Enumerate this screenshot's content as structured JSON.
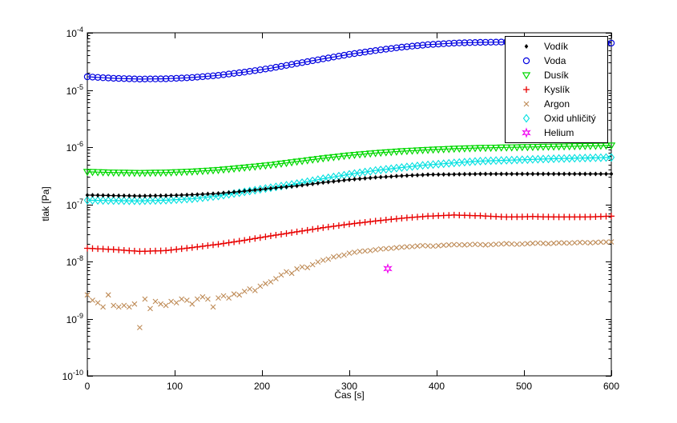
{
  "figure": {
    "background": "#ffffff"
  },
  "chart_data": {
    "type": "line",
    "title": "",
    "xlabel": "Čas [s]",
    "ylabel": "tlak [Pa]",
    "x_unit": "s",
    "y_unit": "Pa",
    "xlim": [
      0,
      600
    ],
    "x_ticks": [
      0,
      100,
      200,
      300,
      400,
      500,
      600
    ],
    "y_scale": "log",
    "ylim": [
      1e-10,
      0.0001
    ],
    "y_tick_exponents": [
      -4,
      -5,
      -6,
      -7,
      -8,
      -9,
      -10
    ],
    "grid": false,
    "legend": {
      "position": "top-right",
      "border_color": "#000000",
      "background": "#ffffff"
    },
    "marker_interval_s": 6,
    "series": [
      {
        "name": "Vodík",
        "color": "#000000",
        "marker": "diamond-filled",
        "line": true,
        "points": [
          [
            0,
            1.45e-07
          ],
          [
            30,
            1.42e-07
          ],
          [
            60,
            1.4e-07
          ],
          [
            90,
            1.42e-07
          ],
          [
            120,
            1.47e-07
          ],
          [
            150,
            1.55e-07
          ],
          [
            180,
            1.7e-07
          ],
          [
            210,
            1.9e-07
          ],
          [
            240,
            2.1e-07
          ],
          [
            270,
            2.4e-07
          ],
          [
            300,
            2.7e-07
          ],
          [
            330,
            2.95e-07
          ],
          [
            360,
            3.15e-07
          ],
          [
            390,
            3.3e-07
          ],
          [
            420,
            3.35e-07
          ],
          [
            450,
            3.4e-07
          ],
          [
            480,
            3.4e-07
          ],
          [
            510,
            3.4e-07
          ],
          [
            540,
            3.4e-07
          ],
          [
            570,
            3.4e-07
          ],
          [
            600,
            3.4e-07
          ]
        ]
      },
      {
        "name": "Voda",
        "color": "#0000E0",
        "marker": "circle-open",
        "line": true,
        "points": [
          [
            0,
            1.7e-05
          ],
          [
            30,
            1.6e-05
          ],
          [
            60,
            1.55e-05
          ],
          [
            90,
            1.57e-05
          ],
          [
            120,
            1.65e-05
          ],
          [
            150,
            1.8e-05
          ],
          [
            180,
            2.05e-05
          ],
          [
            210,
            2.4e-05
          ],
          [
            240,
            2.9e-05
          ],
          [
            270,
            3.5e-05
          ],
          [
            300,
            4.2e-05
          ],
          [
            330,
            4.9e-05
          ],
          [
            360,
            5.6e-05
          ],
          [
            390,
            6.2e-05
          ],
          [
            420,
            6.6e-05
          ],
          [
            450,
            6.8e-05
          ],
          [
            480,
            6.9e-05
          ],
          [
            510,
            6.85e-05
          ],
          [
            540,
            6.8e-05
          ],
          [
            570,
            6.7e-05
          ],
          [
            600,
            6.6e-05
          ]
        ]
      },
      {
        "name": "Dusík",
        "color": "#00D800",
        "marker": "triangle-down-open",
        "line": true,
        "points": [
          [
            0,
            3.7e-07
          ],
          [
            30,
            3.6e-07
          ],
          [
            60,
            3.55e-07
          ],
          [
            90,
            3.6e-07
          ],
          [
            120,
            3.75e-07
          ],
          [
            150,
            4e-07
          ],
          [
            180,
            4.4e-07
          ],
          [
            210,
            4.9e-07
          ],
          [
            240,
            5.6e-07
          ],
          [
            270,
            6.4e-07
          ],
          [
            300,
            7.2e-07
          ],
          [
            330,
            7.9e-07
          ],
          [
            360,
            8.5e-07
          ],
          [
            390,
            9e-07
          ],
          [
            420,
            9.4e-07
          ],
          [
            450,
            9.7e-07
          ],
          [
            480,
            9.9e-07
          ],
          [
            510,
            1.01e-06
          ],
          [
            540,
            1.03e-06
          ],
          [
            570,
            1.05e-06
          ],
          [
            600,
            1.07e-06
          ]
        ]
      },
      {
        "name": "Kyslík",
        "color": "#E80000",
        "marker": "plus",
        "line": true,
        "points": [
          [
            0,
            1.7e-08
          ],
          [
            30,
            1.62e-08
          ],
          [
            60,
            1.5e-08
          ],
          [
            90,
            1.55e-08
          ],
          [
            120,
            1.75e-08
          ],
          [
            150,
            2e-08
          ],
          [
            180,
            2.35e-08
          ],
          [
            210,
            2.8e-08
          ],
          [
            240,
            3.3e-08
          ],
          [
            270,
            3.9e-08
          ],
          [
            300,
            4.5e-08
          ],
          [
            330,
            5.1e-08
          ],
          [
            360,
            5.7e-08
          ],
          [
            390,
            6.2e-08
          ],
          [
            420,
            6.5e-08
          ],
          [
            450,
            6.3e-08
          ],
          [
            480,
            6e-08
          ],
          [
            510,
            6.1e-08
          ],
          [
            540,
            6e-08
          ],
          [
            570,
            6e-08
          ],
          [
            600,
            6.2e-08
          ]
        ]
      },
      {
        "name": "Argon",
        "color": "#BE8A55",
        "marker": "x",
        "line": false,
        "points": [
          [
            0,
            2.6e-09
          ],
          [
            6,
            2.1e-09
          ],
          [
            12,
            1.9e-09
          ],
          [
            18,
            1.6e-09
          ],
          [
            24,
            2.6e-09
          ],
          [
            30,
            1.7e-09
          ],
          [
            36,
            1.6e-09
          ],
          [
            42,
            1.7e-09
          ],
          [
            48,
            1.6e-09
          ],
          [
            54,
            1.8e-09
          ],
          [
            60,
            7e-10
          ],
          [
            66,
            2.2e-09
          ],
          [
            72,
            1.5e-09
          ],
          [
            78,
            2e-09
          ],
          [
            84,
            1.8e-09
          ],
          [
            90,
            1.7e-09
          ],
          [
            96,
            2e-09
          ],
          [
            102,
            1.9e-09
          ],
          [
            108,
            2.2e-09
          ],
          [
            114,
            2.1e-09
          ],
          [
            120,
            1.8e-09
          ],
          [
            126,
            2.2e-09
          ],
          [
            132,
            2.4e-09
          ],
          [
            138,
            2.2e-09
          ],
          [
            144,
            1.6e-09
          ],
          [
            150,
            2.3e-09
          ],
          [
            156,
            2.5e-09
          ],
          [
            162,
            2.3e-09
          ],
          [
            168,
            2.7e-09
          ],
          [
            174,
            2.6e-09
          ],
          [
            180,
            3e-09
          ],
          [
            186,
            3.3e-09
          ],
          [
            192,
            3.1e-09
          ],
          [
            198,
            3.7e-09
          ],
          [
            204,
            4.1e-09
          ],
          [
            210,
            4.4e-09
          ],
          [
            216,
            5e-09
          ],
          [
            222,
            5.8e-09
          ],
          [
            228,
            6.6e-09
          ],
          [
            234,
            6.2e-09
          ],
          [
            240,
            7.4e-09
          ],
          [
            246,
            8e-09
          ],
          [
            252,
            7.8e-09
          ],
          [
            258,
            8.8e-09
          ],
          [
            264,
            9.8e-09
          ],
          [
            270,
            1.05e-08
          ],
          [
            276,
            1.1e-08
          ],
          [
            282,
            1.2e-08
          ],
          [
            288,
            1.25e-08
          ],
          [
            294,
            1.3e-08
          ],
          [
            300,
            1.4e-08
          ],
          [
            312,
            1.5e-08
          ],
          [
            324,
            1.55e-08
          ],
          [
            336,
            1.65e-08
          ],
          [
            348,
            1.7e-08
          ],
          [
            360,
            1.78e-08
          ],
          [
            372,
            1.82e-08
          ],
          [
            384,
            1.9e-08
          ],
          [
            396,
            1.85e-08
          ],
          [
            408,
            1.92e-08
          ],
          [
            420,
            1.97e-08
          ],
          [
            432,
            1.95e-08
          ],
          [
            444,
            2e-08
          ],
          [
            456,
            1.95e-08
          ],
          [
            468,
            2e-08
          ],
          [
            480,
            2.05e-08
          ],
          [
            492,
            2e-08
          ],
          [
            504,
            2.05e-08
          ],
          [
            516,
            2.1e-08
          ],
          [
            528,
            2.05e-08
          ],
          [
            540,
            2.12e-08
          ],
          [
            552,
            2.1e-08
          ],
          [
            564,
            2.15e-08
          ],
          [
            576,
            2.12e-08
          ],
          [
            588,
            2.18e-08
          ],
          [
            600,
            2.2e-08
          ]
        ]
      },
      {
        "name": "Oxid uhličitý",
        "color": "#00E0E0",
        "marker": "diamond-open",
        "line": true,
        "points": [
          [
            0,
            1.18e-07
          ],
          [
            30,
            1.16e-07
          ],
          [
            60,
            1.15e-07
          ],
          [
            90,
            1.18e-07
          ],
          [
            120,
            1.25e-07
          ],
          [
            150,
            1.4e-07
          ],
          [
            180,
            1.65e-07
          ],
          [
            210,
            1.95e-07
          ],
          [
            240,
            2.3e-07
          ],
          [
            270,
            2.8e-07
          ],
          [
            300,
            3.35e-07
          ],
          [
            330,
            3.9e-07
          ],
          [
            360,
            4.4e-07
          ],
          [
            390,
            4.9e-07
          ],
          [
            420,
            5.3e-07
          ],
          [
            450,
            5.7e-07
          ],
          [
            480,
            5.9e-07
          ],
          [
            510,
            6.1e-07
          ],
          [
            540,
            6.3e-07
          ],
          [
            570,
            6.45e-07
          ],
          [
            600,
            6.6e-07
          ]
        ]
      },
      {
        "name": "Helium",
        "color": "#F000F0",
        "marker": "hexagram-open",
        "line": false,
        "points": [
          [
            344,
            7.5e-09
          ]
        ]
      }
    ]
  }
}
